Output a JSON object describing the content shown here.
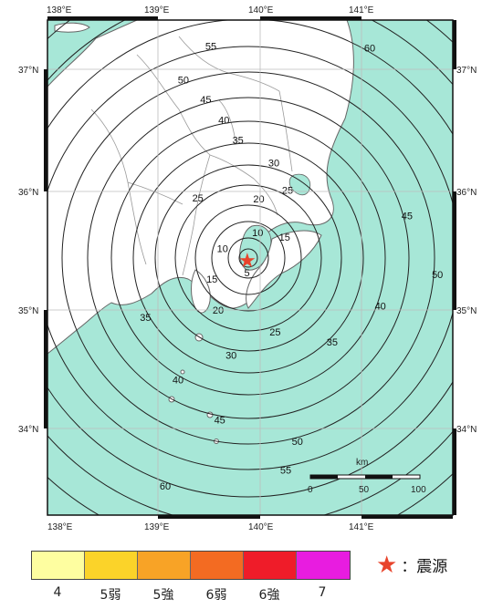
{
  "map": {
    "colors": {
      "sea": "#a7e7d7",
      "land": "#ffffff",
      "contour": "#222222",
      "prefecture_border": "#9a9a9a",
      "epicenter": "#e8442c"
    },
    "longitude_labels": [
      "138°E",
      "139°E",
      "140°E",
      "141°E"
    ],
    "latitude_labels": [
      "37°N",
      "36°N",
      "35°N",
      "34°N"
    ],
    "epicenter_icon": "star-icon",
    "contour_labels": [
      "5",
      "10",
      "15",
      "20",
      "25",
      "30",
      "35",
      "40",
      "45",
      "50",
      "55",
      "60"
    ],
    "scale_bar": {
      "unit": "km",
      "ticks": [
        "0",
        "50",
        "100"
      ]
    }
  },
  "legend": {
    "intensity_scale": [
      {
        "label": "4",
        "color": "#fefea0"
      },
      {
        "label": "5弱",
        "color": "#fbd329"
      },
      {
        "label": "5強",
        "color": "#f8a326"
      },
      {
        "label": "6弱",
        "color": "#f36b22"
      },
      {
        "label": "6強",
        "color": "#ef1c29"
      },
      {
        "label": "7",
        "color": "#e81ce0"
      }
    ],
    "epicenter_icon": "star-icon",
    "epicenter_label": "：震源"
  }
}
